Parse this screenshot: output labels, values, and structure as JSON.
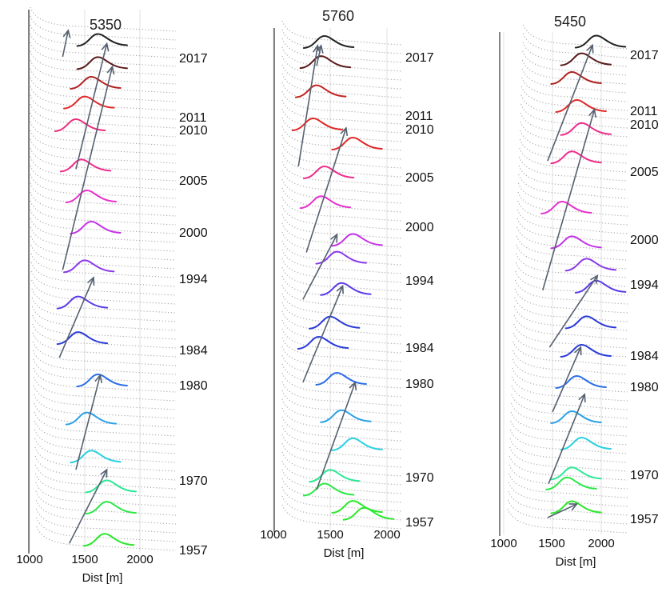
{
  "chart_data": [
    {
      "type": "line",
      "title": "5350",
      "xlabel": "Dist [m]",
      "xticks": [
        1000,
        1500,
        2000
      ],
      "xlim": [
        1000,
        2300
      ],
      "year_labels": [
        {
          "text": "2017",
          "year": 2017
        },
        {
          "text": "2011",
          "year": 2011
        },
        {
          "text": "2010",
          "year": 2010
        },
        {
          "text": "2005",
          "year": 2005
        },
        {
          "text": "2000",
          "year": 2000
        },
        {
          "text": "1994",
          "year": 1994
        },
        {
          "text": "1984",
          "year": 1984
        },
        {
          "text": "1980",
          "year": 1980
        },
        {
          "text": "1970",
          "year": 1970
        },
        {
          "text": "1957",
          "year": 1957
        }
      ],
      "series": [
        {
          "year": 2018,
          "x": 1620,
          "color": "#222222"
        },
        {
          "year": 2016,
          "x": 1620,
          "color": "#5a1a1a"
        },
        {
          "year": 2014,
          "x": 1560,
          "color": "#b02020"
        },
        {
          "year": 2012,
          "x": 1500,
          "color": "#e02828"
        },
        {
          "year": 2010,
          "x": 1420,
          "color": "#e8307a"
        },
        {
          "year": 2006,
          "x": 1470,
          "color": "#ee2c8c"
        },
        {
          "year": 2003,
          "x": 1520,
          "color": "#e632cc"
        },
        {
          "year": 2000,
          "x": 1560,
          "color": "#c432e6"
        },
        {
          "year": 1995,
          "x": 1500,
          "color": "#8a3ae8"
        },
        {
          "year": 1990,
          "x": 1440,
          "color": "#5a3ae8"
        },
        {
          "year": 1985,
          "x": 1440,
          "color": "#2a3ad8"
        },
        {
          "year": 1980,
          "x": 1620,
          "color": "#2a6ee8"
        },
        {
          "year": 1976,
          "x": 1520,
          "color": "#2aa0e8"
        },
        {
          "year": 1972,
          "x": 1560,
          "color": "#2ad0e0"
        },
        {
          "year": 1968,
          "x": 1700,
          "color": "#2ae896"
        },
        {
          "year": 1964,
          "x": 1700,
          "color": "#2ae846"
        },
        {
          "year": 1958,
          "x": 1680,
          "color": "#2ae82a"
        }
      ],
      "arrows": [
        {
          "from": [
            1300,
            2017
          ],
          "to": [
            1350,
            2019
          ]
        },
        {
          "from": [
            1420,
            2006
          ],
          "to": [
            1700,
            2018
          ]
        },
        {
          "from": [
            1300,
            1995
          ],
          "to": [
            1750,
            2016
          ]
        },
        {
          "from": [
            1270,
            1983
          ],
          "to": [
            1580,
            1994
          ]
        },
        {
          "from": [
            1420,
            1971
          ],
          "to": [
            1640,
            1981
          ]
        },
        {
          "from": [
            1360,
            1958
          ],
          "to": [
            1700,
            1971
          ]
        }
      ]
    },
    {
      "type": "line",
      "title": "5760",
      "xlabel": "Dist [m]",
      "xticks": [
        1000,
        1500,
        2000
      ],
      "xlim": [
        1000,
        2150
      ],
      "year_labels": [
        {
          "text": "2017",
          "year": 2017
        },
        {
          "text": "2011",
          "year": 2011
        },
        {
          "text": "2010",
          "year": 2010
        },
        {
          "text": "2005",
          "year": 2005
        },
        {
          "text": "2000",
          "year": 2000
        },
        {
          "text": "1994",
          "year": 1994
        },
        {
          "text": "1984",
          "year": 1984
        },
        {
          "text": "1980",
          "year": 1980
        },
        {
          "text": "1970",
          "year": 1970
        },
        {
          "text": "1957",
          "year": 1957
        }
      ],
      "series": [
        {
          "year": 2018,
          "x": 1450,
          "color": "#222222"
        },
        {
          "year": 2016,
          "x": 1420,
          "color": "#5a1a1a"
        },
        {
          "year": 2013,
          "x": 1380,
          "color": "#c42222"
        },
        {
          "year": 2010,
          "x": 1350,
          "color": "#e02828"
        },
        {
          "year": 2008,
          "x": 1700,
          "color": "#e02828"
        },
        {
          "year": 2005,
          "x": 1450,
          "color": "#ee2c8c"
        },
        {
          "year": 2002,
          "x": 1420,
          "color": "#e632cc"
        },
        {
          "year": 1998,
          "x": 1700,
          "color": "#c432e6"
        },
        {
          "year": 1996,
          "x": 1560,
          "color": "#8a3ae8"
        },
        {
          "year": 1992,
          "x": 1600,
          "color": "#5a3ae8"
        },
        {
          "year": 1987,
          "x": 1500,
          "color": "#2a3ad8"
        },
        {
          "year": 1984,
          "x": 1400,
          "color": "#2a3ad8"
        },
        {
          "year": 1980,
          "x": 1560,
          "color": "#2a6ee8"
        },
        {
          "year": 1976,
          "x": 1600,
          "color": "#2aa0e8"
        },
        {
          "year": 1973,
          "x": 1700,
          "color": "#2ad0e0"
        },
        {
          "year": 1969,
          "x": 1500,
          "color": "#2ae896"
        },
        {
          "year": 1965,
          "x": 1450,
          "color": "#2ae846"
        },
        {
          "year": 1960,
          "x": 1700,
          "color": "#2ae82a"
        },
        {
          "year": 1958,
          "x": 1800,
          "color": "#2ae82a"
        }
      ],
      "arrows": [
        {
          "from": [
            1380,
            2016
          ],
          "to": [
            1420,
            2018
          ]
        },
        {
          "from": [
            1220,
            2006
          ],
          "to": [
            1390,
            2018
          ]
        },
        {
          "from": [
            1290,
            1997
          ],
          "to": [
            1640,
            2010
          ]
        },
        {
          "from": [
            1260,
            1991
          ],
          "to": [
            1560,
            1999
          ]
        },
        {
          "from": [
            1260,
            1980
          ],
          "to": [
            1610,
            1993
          ]
        },
        {
          "from": [
            1380,
            1966
          ],
          "to": [
            1720,
            1980
          ]
        }
      ]
    },
    {
      "type": "line",
      "title": "5450",
      "xlabel": "Dist [m]",
      "xticks": [
        1000,
        1500,
        2000
      ],
      "xlim": [
        1000,
        2250
      ],
      "year_labels": [
        {
          "text": "2017",
          "year": 2017
        },
        {
          "text": "2011",
          "year": 2011
        },
        {
          "text": "2010",
          "year": 2010
        },
        {
          "text": "2005",
          "year": 2005
        },
        {
          "text": "2000",
          "year": 2000
        },
        {
          "text": "1994",
          "year": 1994
        },
        {
          "text": "1984",
          "year": 1984
        },
        {
          "text": "1980",
          "year": 1980
        },
        {
          "text": "1970",
          "year": 1970
        },
        {
          "text": "1957",
          "year": 1957
        }
      ],
      "series": [
        {
          "year": 2018,
          "x": 1950,
          "color": "#222222"
        },
        {
          "year": 2016,
          "x": 1800,
          "color": "#5a1a1a"
        },
        {
          "year": 2014,
          "x": 1700,
          "color": "#b02020"
        },
        {
          "year": 2011,
          "x": 1750,
          "color": "#e02828"
        },
        {
          "year": 2009,
          "x": 1800,
          "color": "#ee2c8c"
        },
        {
          "year": 2006,
          "x": 1700,
          "color": "#ee2c8c"
        },
        {
          "year": 2002,
          "x": 1600,
          "color": "#e632cc"
        },
        {
          "year": 1999,
          "x": 1700,
          "color": "#c432e6"
        },
        {
          "year": 1996,
          "x": 1850,
          "color": "#8a3ae8"
        },
        {
          "year": 1993,
          "x": 1950,
          "color": "#5a3ae8"
        },
        {
          "year": 1988,
          "x": 1850,
          "color": "#2a3ad8"
        },
        {
          "year": 1984,
          "x": 1800,
          "color": "#2a3ad8"
        },
        {
          "year": 1980,
          "x": 1750,
          "color": "#2a6ee8"
        },
        {
          "year": 1976,
          "x": 1700,
          "color": "#2aa0e8"
        },
        {
          "year": 1973,
          "x": 1800,
          "color": "#2ad0e0"
        },
        {
          "year": 1969,
          "x": 1700,
          "color": "#2ae896"
        },
        {
          "year": 1966,
          "x": 1650,
          "color": "#2ae846"
        },
        {
          "year": 1959,
          "x": 1700,
          "color": "#2ae82a"
        }
      ],
      "arrows": [
        {
          "from": [
            1450,
            2006
          ],
          "to": [
            1910,
            2018
          ]
        },
        {
          "from": [
            1400,
            1993
          ],
          "to": [
            1930,
            2011
          ]
        },
        {
          "from": [
            1470,
            1985
          ],
          "to": [
            1960,
            1995
          ]
        },
        {
          "from": [
            1500,
            1977
          ],
          "to": [
            1790,
            1985
          ]
        },
        {
          "from": [
            1460,
            1967
          ],
          "to": [
            1830,
            1979
          ]
        },
        {
          "from": [
            1450,
            1957
          ],
          "to": [
            1750,
            1961
          ]
        }
      ]
    }
  ]
}
